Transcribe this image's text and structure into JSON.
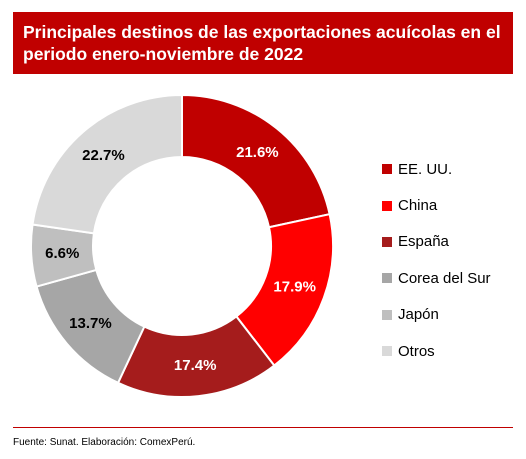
{
  "chart_data": {
    "type": "pie",
    "title": "Principales destinos de las exportaciones acuícolas en el periodo enero-noviembre de 2022",
    "categories": [
      "EE. UU.",
      "China",
      "España",
      "Corea del Sur",
      "Japón",
      "Otros"
    ],
    "values": [
      21.6,
      17.9,
      17.4,
      13.7,
      6.6,
      22.7
    ],
    "labels": [
      "21.6%",
      "17.9%",
      "17.4%",
      "13.7%",
      "6.6%",
      "22.7%"
    ],
    "label_colors": [
      "#ffffff",
      "#ffffff",
      "#ffffff",
      "#000000",
      "#000000",
      "#000000"
    ],
    "colors": [
      "#c00000",
      "#ff0000",
      "#a51c1c",
      "#a6a6a6",
      "#bfbfbf",
      "#d9d9d9"
    ],
    "donut": true,
    "legend_position": "right"
  },
  "footnote": "Fuente: Sunat. Elaboración: ComexPerú."
}
